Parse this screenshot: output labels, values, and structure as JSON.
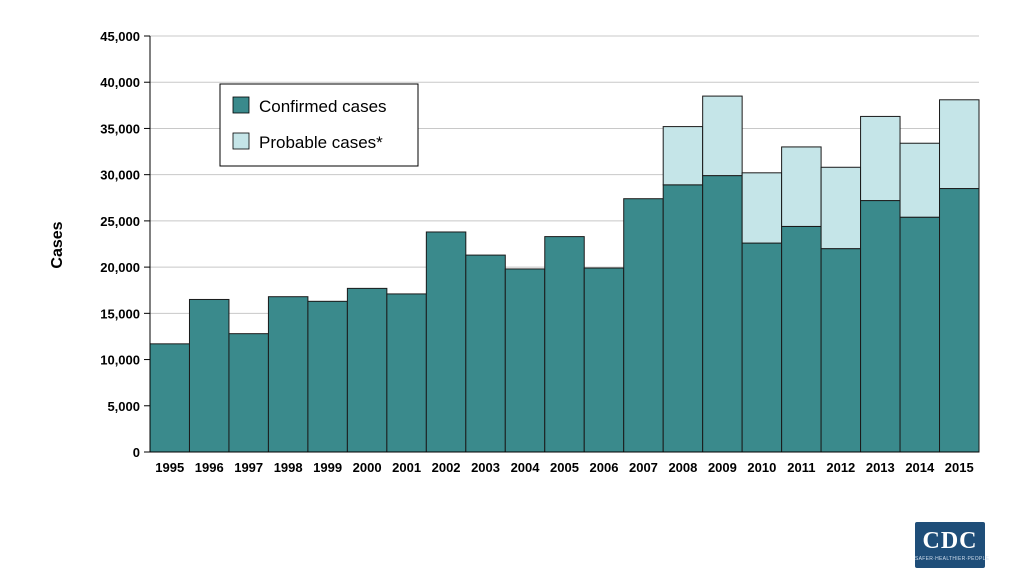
{
  "chart_data": {
    "type": "bar",
    "stacked": true,
    "ylabel": "Cases",
    "xlabel": "",
    "ylim": [
      0,
      45000
    ],
    "yticks": [
      0,
      5000,
      10000,
      15000,
      20000,
      25000,
      30000,
      35000,
      40000,
      45000
    ],
    "ytick_labels": [
      "0",
      "5,000",
      "10,000",
      "15,000",
      "20,000",
      "25,000",
      "30,000",
      "35,000",
      "40,000",
      "45,000"
    ],
    "grid": true,
    "legend_position": "top-left",
    "categories": [
      "1995",
      "1996",
      "1997",
      "1998",
      "1999",
      "2000",
      "2001",
      "2002",
      "2003",
      "2004",
      "2005",
      "2006",
      "2007",
      "2008",
      "2009",
      "2010",
      "2011",
      "2012",
      "2013",
      "2014",
      "2015"
    ],
    "series": [
      {
        "name": "Confirmed cases",
        "color": "#3a8a8c",
        "values": [
          11700,
          16500,
          12800,
          16800,
          16300,
          17700,
          17100,
          23800,
          21300,
          19800,
          23300,
          19900,
          27400,
          28900,
          29900,
          22600,
          24400,
          22000,
          27200,
          25400,
          28500
        ]
      },
      {
        "name": "Probable cases*",
        "color": "#c5e5e8",
        "values": [
          0,
          0,
          0,
          0,
          0,
          0,
          0,
          0,
          0,
          0,
          0,
          0,
          0,
          6300,
          8600,
          7600,
          8600,
          8800,
          9100,
          8000,
          9600
        ]
      }
    ]
  },
  "logo": {
    "text": "CDC",
    "tagline": "SAFER·HEALTHIER·PEOPLE"
  }
}
